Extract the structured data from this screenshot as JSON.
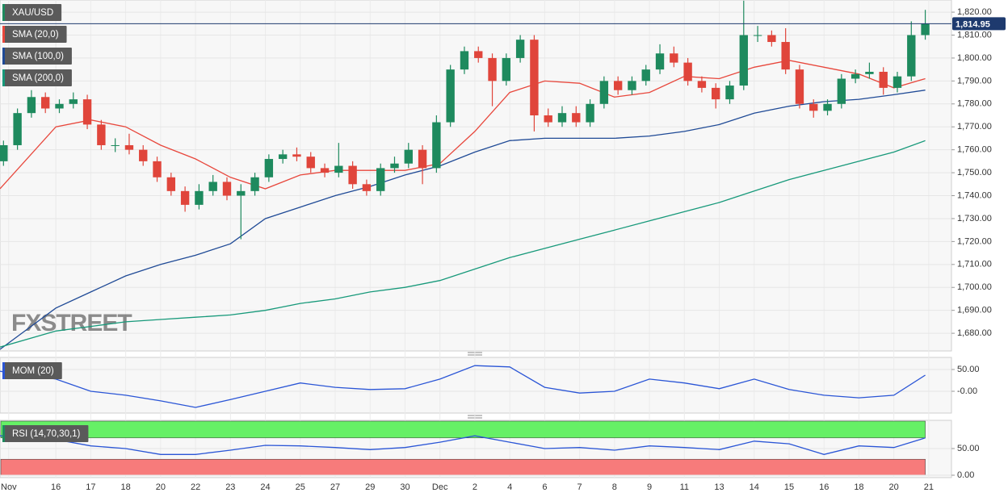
{
  "chart_data": {
    "type": "candlestick",
    "symbol": "XAU/USD",
    "watermark": "FXSTREET",
    "grid": true,
    "xlim": [
      -0.6,
      26.65
    ],
    "xticks": [
      {
        "value": -0.35,
        "label": "Nov"
      },
      {
        "value": 1,
        "label": "16"
      },
      {
        "value": 2,
        "label": "17"
      },
      {
        "value": 3,
        "label": "18"
      },
      {
        "value": 4,
        "label": "20"
      },
      {
        "value": 5,
        "label": "22"
      },
      {
        "value": 6,
        "label": "23"
      },
      {
        "value": 7,
        "label": "24"
      },
      {
        "value": 8,
        "label": "25"
      },
      {
        "value": 9,
        "label": "27"
      },
      {
        "value": 10,
        "label": "29"
      },
      {
        "value": 11,
        "label": "30"
      },
      {
        "value": 12,
        "label": "Dec"
      },
      {
        "value": 13,
        "label": "2"
      },
      {
        "value": 14,
        "label": "4"
      },
      {
        "value": 15,
        "label": "6"
      },
      {
        "value": 16,
        "label": "7"
      },
      {
        "value": 17,
        "label": "8"
      },
      {
        "value": 18,
        "label": "9"
      },
      {
        "value": 19,
        "label": "11"
      },
      {
        "value": 20,
        "label": "13"
      },
      {
        "value": 21,
        "label": "14"
      },
      {
        "value": 22,
        "label": "15"
      },
      {
        "value": 23,
        "label": "16"
      },
      {
        "value": 24,
        "label": "18"
      },
      {
        "value": 25,
        "label": "20"
      },
      {
        "value": 26,
        "label": "21"
      }
    ],
    "ylim": [
      1672.3,
      1825.3
    ],
    "yticks": [
      {
        "value": 1680,
        "label": "1,680.00"
      },
      {
        "value": 1690,
        "label": "1,690.00"
      },
      {
        "value": 1700,
        "label": "1,700.00"
      },
      {
        "value": 1710,
        "label": "1,710.00"
      },
      {
        "value": 1720,
        "label": "1,720.00"
      },
      {
        "value": 1730,
        "label": "1,730.00"
      },
      {
        "value": 1740,
        "label": "1,740.00"
      },
      {
        "value": 1750,
        "label": "1,750.00"
      },
      {
        "value": 1760,
        "label": "1,760.00"
      },
      {
        "value": 1770,
        "label": "1,770.00"
      },
      {
        "value": 1780,
        "label": "1,780.00"
      },
      {
        "value": 1790,
        "label": "1,790.00"
      },
      {
        "value": 1800,
        "label": "1,800.00"
      },
      {
        "value": 1810,
        "label": "1,810.00"
      },
      {
        "value": 1820,
        "label": "1,820.00"
      }
    ],
    "last_price": {
      "value": 1814.95,
      "label": "1,814.95"
    },
    "candles": {
      "up_color": "#1e8a5e",
      "down_color": "#e0453b",
      "x": [
        -0.5,
        -0.1,
        0.3,
        0.7,
        1.1,
        1.5,
        1.9,
        2.3,
        2.7,
        3.1,
        3.5,
        3.9,
        4.3,
        4.7,
        5.1,
        5.5,
        5.9,
        6.3,
        6.7,
        7.1,
        7.5,
        7.9,
        8.3,
        8.7,
        9.1,
        9.5,
        9.9,
        10.3,
        10.7,
        11.1,
        11.5,
        11.9,
        12.3,
        12.7,
        13.1,
        13.5,
        13.9,
        14.3,
        14.7,
        15.1,
        15.5,
        15.9,
        16.3,
        16.7,
        17.1,
        17.5,
        17.9,
        18.3,
        18.7,
        19.1,
        19.5,
        19.9,
        20.3,
        20.7,
        21.1,
        21.5,
        21.9,
        22.3,
        22.7,
        23.1,
        23.5,
        23.9,
        24.3,
        24.7,
        25.1,
        25.5,
        25.9
      ],
      "open": [
        1755,
        1762,
        1776,
        1783,
        1778,
        1780,
        1782,
        1771,
        1762,
        1762,
        1760,
        1755,
        1748,
        1742,
        1736,
        1742,
        1746,
        1740,
        1742,
        1748,
        1756,
        1758,
        1757,
        1752,
        1750,
        1753,
        1745,
        1742,
        1752,
        1754,
        1760,
        1752,
        1772,
        1795,
        1803,
        1800,
        1790,
        1800,
        1808,
        1775,
        1772,
        1776,
        1772,
        1780,
        1790,
        1786,
        1790,
        1795,
        1802,
        1798,
        1790,
        1787,
        1782,
        1788,
        1810,
        1810,
        1807,
        1795,
        1780,
        1777,
        1780,
        1791,
        1793,
        1794,
        1787,
        1792,
        1810
      ],
      "high": [
        1764,
        1778,
        1786,
        1785,
        1782,
        1785,
        1784,
        1773,
        1765,
        1767,
        1762,
        1757,
        1750,
        1744,
        1745,
        1749,
        1748,
        1745,
        1750,
        1758,
        1760,
        1761,
        1759,
        1754,
        1763,
        1755,
        1747,
        1754,
        1757,
        1763,
        1762,
        1775,
        1797,
        1805,
        1805,
        1802,
        1802,
        1810,
        1810,
        1778,
        1779,
        1779,
        1782,
        1792,
        1792,
        1792,
        1797,
        1806,
        1805,
        1800,
        1792,
        1789,
        1790,
        1825,
        1814,
        1812,
        1813,
        1797,
        1782,
        1782,
        1793,
        1795,
        1798,
        1796,
        1794,
        1816,
        1821
      ],
      "low": [
        1753,
        1760,
        1774,
        1776,
        1776,
        1778,
        1769,
        1760,
        1759,
        1758,
        1753,
        1746,
        1740,
        1733,
        1734,
        1740,
        1738,
        1721,
        1740,
        1746,
        1754,
        1755,
        1750,
        1748,
        1748,
        1743,
        1740,
        1740,
        1750,
        1752,
        1745,
        1750,
        1770,
        1793,
        1798,
        1779,
        1788,
        1798,
        1768,
        1770,
        1770,
        1770,
        1770,
        1778,
        1784,
        1784,
        1788,
        1793,
        1796,
        1788,
        1785,
        1778,
        1780,
        1786,
        1807,
        1805,
        1793,
        1778,
        1774,
        1775,
        1778,
        1789,
        1791,
        1784,
        1785,
        1790,
        1808
      ],
      "close": [
        1762,
        1776,
        1783,
        1778,
        1780,
        1782,
        1771,
        1762,
        1762,
        1760,
        1755,
        1748,
        1742,
        1736,
        1742,
        1746,
        1740,
        1742,
        1748,
        1756,
        1758,
        1757,
        1752,
        1750,
        1753,
        1745,
        1742,
        1752,
        1754,
        1760,
        1752,
        1772,
        1795,
        1803,
        1800,
        1790,
        1800,
        1808,
        1775,
        1772,
        1776,
        1772,
        1780,
        1790,
        1786,
        1790,
        1795,
        1802,
        1798,
        1790,
        1787,
        1782,
        1788,
        1810,
        1810,
        1807,
        1795,
        1780,
        1777,
        1780,
        1791,
        1793,
        1794,
        1787,
        1792,
        1810,
        1815
      ]
    },
    "line_x": [
      -0.6,
      1,
      2,
      3,
      4,
      5,
      6,
      7,
      8,
      9,
      10,
      11,
      12,
      13,
      14,
      15,
      16,
      17,
      18,
      19,
      20,
      21,
      22,
      23,
      24,
      25,
      25.9
    ],
    "series": [
      {
        "name": "SMA (20,0)",
        "color": "#e8473c",
        "values": [
          1743,
          1770,
          1773,
          1770,
          1762,
          1756,
          1748,
          1743,
          1749,
          1751,
          1751,
          1751,
          1754,
          1768,
          1785,
          1790,
          1789,
          1783,
          1785,
          1792,
          1791,
          1796,
          1799,
          1796,
          1793,
          1787,
          1791
        ]
      },
      {
        "name": "SMA (100,0)",
        "color": "#1f4a96",
        "values": [
          1673,
          1691,
          1698,
          1705,
          1710,
          1714,
          1719,
          1730,
          1735,
          1740,
          1744,
          1749,
          1753,
          1759,
          1764,
          1765,
          1765,
          1765,
          1766,
          1768,
          1771,
          1776,
          1779,
          1781,
          1782,
          1784,
          1786
        ]
      },
      {
        "name": "SMA (200,0)",
        "color": "#17997a",
        "values": [
          1674,
          1681,
          1683,
          1685,
          1686,
          1687,
          1688,
          1690,
          1693,
          1695,
          1698,
          1700,
          1703,
          1708,
          1713,
          1717,
          1721,
          1725,
          1729,
          1733,
          1737,
          1742,
          1747,
          1751,
          1755,
          1759,
          1764
        ]
      }
    ],
    "symbol_color": "#1e8a5e",
    "indicators": [
      {
        "type": "line",
        "name": "MOM (20)",
        "color": "#2a55d6",
        "legend_color": "#2a55d6",
        "ylim": [
          -50,
          77.8
        ],
        "yticks": [
          {
            "value": 50,
            "label": "50.00"
          },
          {
            "value": 0,
            "label": "-0.00"
          }
        ],
        "values": [
          46,
          28,
          0,
          -9,
          -22,
          -37,
          -19,
          0,
          19,
          9,
          4,
          6,
          28,
          59,
          56,
          9,
          -4,
          0,
          28,
          19,
          6,
          28,
          4,
          -9,
          -15,
          -9,
          37
        ]
      },
      {
        "type": "line",
        "name": "RSI (14,70,30,1)",
        "color": "#2a55d6",
        "legend_color": "#1e8a5e",
        "ylim": [
          -4.5,
          103
        ],
        "yticks": [
          {
            "value": 50,
            "label": "50.00"
          },
          {
            "value": 0,
            "label": "0.00"
          }
        ],
        "overbought": 70,
        "oversold": 30,
        "overbought_color": "#66f066",
        "oversold_color": "#f77b7b",
        "values": [
          74,
          67,
          55,
          50,
          39,
          39,
          47,
          56,
          55,
          52,
          48,
          52,
          62,
          74,
          62,
          50,
          52,
          47,
          55,
          52,
          48,
          64,
          59,
          39,
          55,
          52,
          70
        ]
      }
    ]
  }
}
